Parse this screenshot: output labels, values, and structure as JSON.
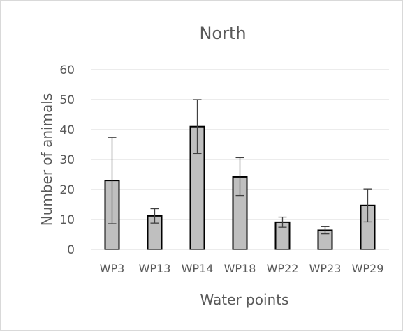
{
  "chart_data": {
    "type": "bar",
    "title": "North",
    "xlabel": "Water points",
    "ylabel": "Number of animals",
    "categories": [
      "WP3",
      "WP13",
      "WP14",
      "WP18",
      "WP22",
      "WP23",
      "WP29"
    ],
    "values": [
      23,
      11.2,
      41,
      24.2,
      9.1,
      6.4,
      14.7
    ],
    "error_bars": [
      {
        "low": 8.6,
        "high": 37.4
      },
      {
        "low": 8.8,
        "high": 13.6
      },
      {
        "low": 32,
        "high": 50
      },
      {
        "low": 18,
        "high": 30.6
      },
      {
        "low": 7.4,
        "high": 10.8
      },
      {
        "low": 5.2,
        "high": 7.6
      },
      {
        "low": 9.2,
        "high": 20.2
      }
    ],
    "ylim": [
      0,
      60
    ],
    "yticks": [
      "0",
      "10",
      "20",
      "30",
      "40",
      "50",
      "60"
    ],
    "grid": true,
    "legend": false,
    "colors": {
      "bar_fill": "#bfbfbf",
      "bar_stroke": "#000000",
      "error_bar": "#404040",
      "grid": "#d9d9d9",
      "text": "#595959"
    }
  }
}
